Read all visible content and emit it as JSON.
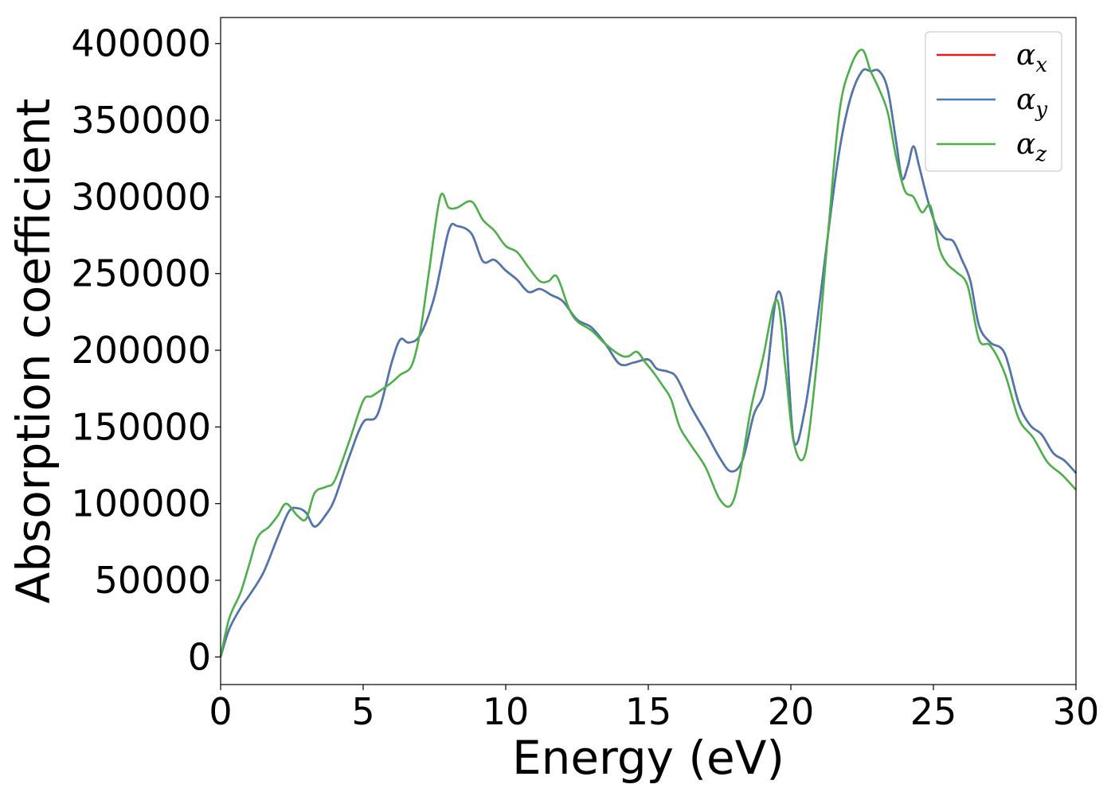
{
  "chart_data": {
    "type": "line",
    "xlabel": "Energy (eV)",
    "ylabel": "Absorption coefficient",
    "xlim": [
      0,
      30
    ],
    "ylim": [
      -18000,
      417000
    ],
    "xticks": [
      0,
      5,
      10,
      15,
      20,
      25,
      30
    ],
    "yticks": [
      0,
      50000,
      100000,
      150000,
      200000,
      250000,
      300000,
      350000,
      400000
    ],
    "grid": false,
    "legend_position": "top-right",
    "series": [
      {
        "name": "α_x",
        "symbol": "α",
        "subscript": "x",
        "color": "#e41a1c",
        "x": [
          0,
          0.3,
          0.7,
          1.0,
          1.5,
          2.0,
          2.4,
          2.7,
          3.0,
          3.3,
          3.7,
          4.0,
          4.5,
          5.0,
          5.5,
          6.0,
          6.3,
          6.6,
          7.0,
          7.5,
          8.0,
          8.3,
          8.8,
          9.2,
          9.6,
          10.0,
          10.4,
          10.8,
          11.2,
          11.6,
          12.0,
          12.5,
          13.0,
          13.5,
          14.0,
          14.5,
          15.0,
          15.3,
          15.7,
          16.0,
          16.5,
          17.0,
          17.5,
          17.9,
          18.3,
          18.7,
          19.1,
          19.5,
          19.8,
          20.1,
          20.5,
          20.9,
          21.3,
          21.7,
          22.1,
          22.5,
          22.8,
          23.1,
          23.4,
          23.7,
          23.9,
          24.1,
          24.3,
          24.5,
          24.8,
          25.1,
          25.4,
          25.7,
          26.0,
          26.3,
          26.6,
          27.0,
          27.5,
          28.0,
          28.4,
          28.8,
          29.2,
          29.6,
          30.0
        ],
        "y": [
          0,
          18000,
          32000,
          40000,
          55000,
          78000,
          95000,
          97000,
          94000,
          85000,
          93000,
          103000,
          130000,
          153000,
          158000,
          192000,
          207000,
          205000,
          210000,
          235000,
          278000,
          281000,
          276000,
          258000,
          259000,
          252000,
          246000,
          238000,
          240000,
          236000,
          232000,
          220000,
          215000,
          204000,
          191000,
          192000,
          194000,
          188000,
          186000,
          182000,
          163000,
          147000,
          130000,
          121000,
          128000,
          158000,
          176000,
          236000,
          218000,
          141000,
          162000,
          215000,
          275000,
          330000,
          365000,
          382000,
          382000,
          382000,
          370000,
          335000,
          312000,
          320000,
          333000,
          320000,
          298000,
          281000,
          273000,
          271000,
          259000,
          245000,
          216000,
          205000,
          198000,
          165000,
          151000,
          145000,
          133000,
          128000,
          120000
        ]
      },
      {
        "name": "α_y",
        "symbol": "α",
        "subscript": "y",
        "color": "#4a78b0",
        "x": [
          0,
          0.3,
          0.7,
          1.0,
          1.5,
          2.0,
          2.4,
          2.7,
          3.0,
          3.3,
          3.7,
          4.0,
          4.5,
          5.0,
          5.5,
          6.0,
          6.3,
          6.6,
          7.0,
          7.5,
          8.0,
          8.3,
          8.8,
          9.2,
          9.6,
          10.0,
          10.4,
          10.8,
          11.2,
          11.6,
          12.0,
          12.5,
          13.0,
          13.5,
          14.0,
          14.5,
          15.0,
          15.3,
          15.7,
          16.0,
          16.5,
          17.0,
          17.5,
          17.9,
          18.3,
          18.7,
          19.1,
          19.5,
          19.8,
          20.1,
          20.5,
          20.9,
          21.3,
          21.7,
          22.1,
          22.5,
          22.8,
          23.1,
          23.4,
          23.7,
          23.9,
          24.1,
          24.3,
          24.5,
          24.8,
          25.1,
          25.4,
          25.7,
          26.0,
          26.3,
          26.6,
          27.0,
          27.5,
          28.0,
          28.4,
          28.8,
          29.2,
          29.6,
          30.0
        ],
        "y": [
          0,
          18000,
          32000,
          40000,
          55000,
          78000,
          95000,
          97000,
          94000,
          85000,
          93000,
          103000,
          130000,
          153000,
          158000,
          192000,
          207000,
          205000,
          210000,
          235000,
          278000,
          281000,
          276000,
          258000,
          259000,
          252000,
          246000,
          238000,
          240000,
          236000,
          232000,
          220000,
          215000,
          204000,
          191000,
          192000,
          194000,
          188000,
          186000,
          182000,
          163000,
          147000,
          130000,
          121000,
          128000,
          158000,
          176000,
          236000,
          218000,
          141000,
          162000,
          215000,
          275000,
          330000,
          365000,
          382000,
          382000,
          382000,
          370000,
          335000,
          312000,
          320000,
          333000,
          320000,
          298000,
          281000,
          273000,
          271000,
          259000,
          245000,
          216000,
          205000,
          198000,
          165000,
          151000,
          145000,
          133000,
          128000,
          120000
        ]
      },
      {
        "name": "α_z",
        "symbol": "α",
        "subscript": "z",
        "color": "#4daf4a",
        "x": [
          0,
          0.3,
          0.7,
          1.0,
          1.3,
          1.7,
          2.0,
          2.3,
          2.7,
          3.0,
          3.3,
          3.7,
          4.0,
          4.5,
          5.0,
          5.3,
          5.7,
          6.0,
          6.3,
          6.7,
          7.0,
          7.3,
          7.7,
          8.0,
          8.3,
          8.8,
          9.2,
          9.6,
          10.0,
          10.4,
          10.8,
          11.2,
          11.5,
          11.8,
          12.2,
          12.5,
          13.0,
          13.5,
          14.0,
          14.3,
          14.6,
          14.9,
          15.2,
          15.5,
          15.8,
          16.1,
          16.5,
          17.0,
          17.5,
          17.9,
          18.2,
          18.6,
          19.0,
          19.5,
          19.8,
          20.1,
          20.5,
          20.9,
          21.3,
          21.7,
          22.1,
          22.5,
          22.8,
          23.1,
          23.4,
          23.7,
          24.0,
          24.3,
          24.6,
          24.9,
          25.2,
          25.5,
          25.8,
          26.2,
          26.6,
          27.0,
          27.5,
          28.0,
          28.5,
          29.0,
          29.5,
          30.0
        ],
        "y": [
          0,
          25000,
          42000,
          60000,
          78000,
          85000,
          92000,
          100000,
          92000,
          90000,
          107000,
          111000,
          115000,
          140000,
          167000,
          170000,
          175000,
          179000,
          184000,
          190000,
          212000,
          250000,
          300000,
          293000,
          293000,
          297000,
          285000,
          278000,
          268000,
          264000,
          254000,
          245000,
          245000,
          248000,
          228000,
          219000,
          213000,
          204000,
          197000,
          196000,
          199000,
          192000,
          185000,
          177000,
          168000,
          150000,
          138000,
          124000,
          103000,
          99000,
          118000,
          162000,
          193000,
          233000,
          190000,
          140000,
          132000,
          190000,
          275000,
          355000,
          385000,
          396000,
          382000,
          370000,
          355000,
          325000,
          304000,
          300000,
          290000,
          294000,
          267000,
          256000,
          251000,
          242000,
          207000,
          203000,
          185000,
          155000,
          143000,
          127000,
          119000,
          109000
        ]
      }
    ]
  }
}
